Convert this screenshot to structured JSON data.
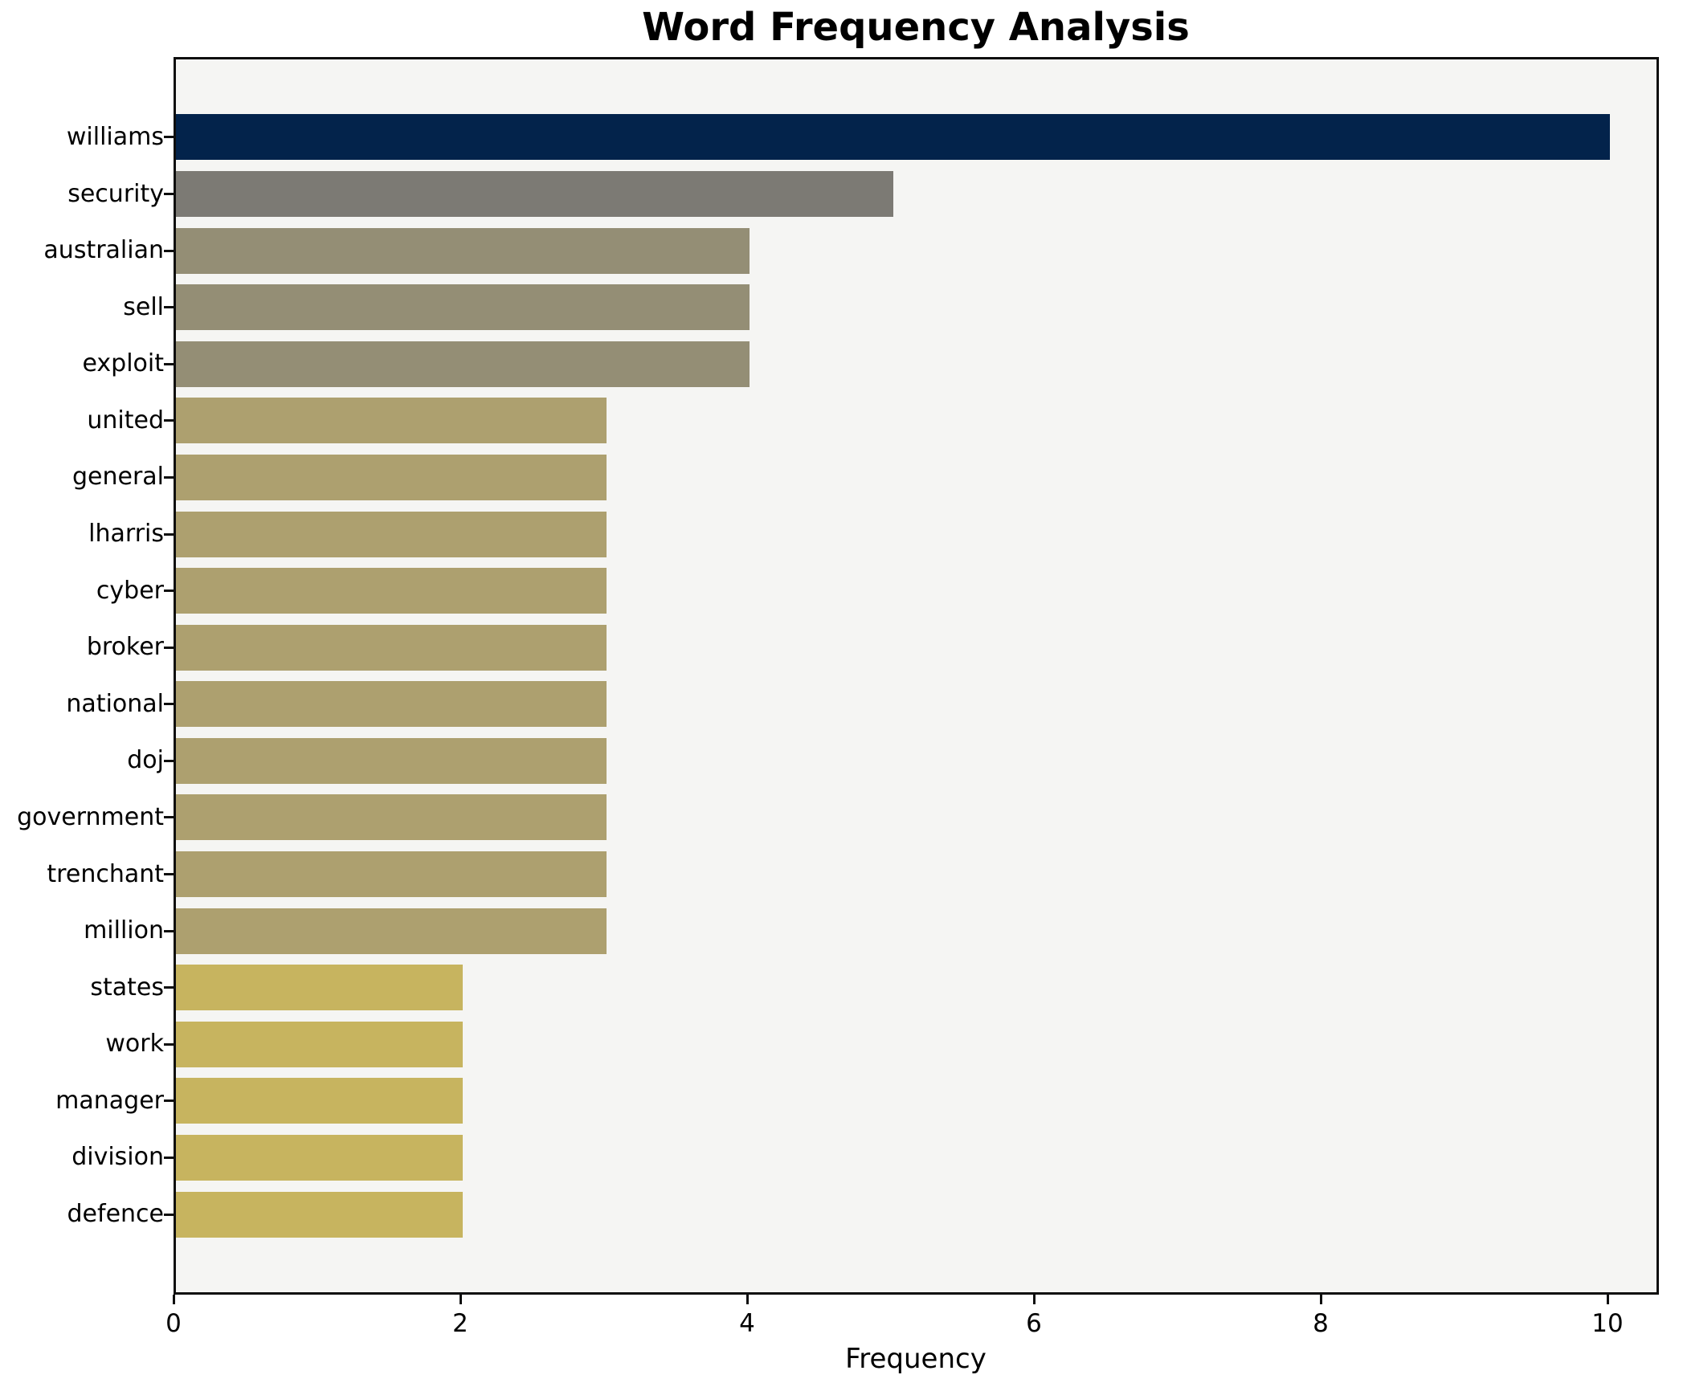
{
  "page": {
    "title": "Word Frequency Analysis"
  },
  "chart_data": {
    "type": "bar",
    "orientation": "horizontal",
    "title": "Word Frequency Analysis",
    "xlabel": "Frequency",
    "ylabel": "",
    "categories": [
      "williams",
      "security",
      "australian",
      "sell",
      "exploit",
      "united",
      "general",
      "lharris",
      "cyber",
      "broker",
      "national",
      "doj",
      "government",
      "trenchant",
      "million",
      "states",
      "work",
      "manager",
      "division",
      "defence"
    ],
    "values": [
      10,
      5,
      4,
      4,
      4,
      3,
      3,
      3,
      3,
      3,
      3,
      3,
      3,
      3,
      3,
      2,
      2,
      2,
      2,
      2
    ],
    "xticks": [
      0,
      2,
      4,
      6,
      8,
      10
    ],
    "xlim": [
      0,
      10.36
    ],
    "grid": false,
    "legend": null,
    "colors": {
      "figure_bg": "#ffffff",
      "plot_bg": "#f5f5f3",
      "spine": "#0e0e0e",
      "tick": "#0e0e0e",
      "text": "#000000",
      "value_color_map": {
        "10": "#03234b",
        "5": "#7c7a74",
        "4": "#948e75",
        "3": "#ada06f",
        "2": "#c7b45f"
      }
    }
  }
}
